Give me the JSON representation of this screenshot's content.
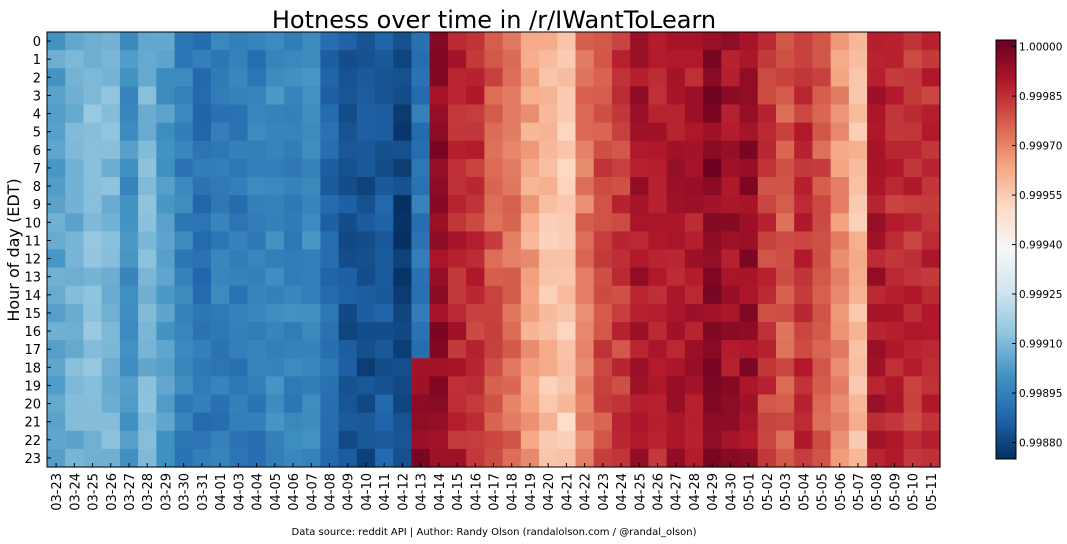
{
  "chart_data": {
    "type": "heatmap",
    "title": "Hotness over time in /r/IWantToLearn",
    "xlabel": "",
    "ylabel": "Hour of day (EDT)",
    "source": "Data source: reddit API | Author: Randy Olson (randalolson.com / @randal_olson)",
    "x_categories": [
      "03-23",
      "03-24",
      "03-25",
      "03-26",
      "03-27",
      "03-28",
      "03-29",
      "03-30",
      "03-31",
      "04-01",
      "04-03",
      "04-04",
      "04-05",
      "04-06",
      "04-07",
      "04-08",
      "04-09",
      "04-10",
      "04-11",
      "04-12",
      "04-13",
      "04-14",
      "04-15",
      "04-16",
      "04-17",
      "04-18",
      "04-19",
      "04-20",
      "04-21",
      "04-22",
      "04-23",
      "04-24",
      "04-25",
      "04-26",
      "04-27",
      "04-28",
      "04-29",
      "04-30",
      "05-01",
      "05-02",
      "05-03",
      "05-04",
      "05-05",
      "05-06",
      "05-07",
      "05-08",
      "05-09",
      "05-10",
      "05-11"
    ],
    "y_categories": [
      "0",
      "1",
      "2",
      "3",
      "4",
      "5",
      "6",
      "7",
      "8",
      "9",
      "10",
      "11",
      "12",
      "13",
      "14",
      "15",
      "16",
      "17",
      "18",
      "19",
      "20",
      "21",
      "22",
      "23"
    ],
    "colorbar": {
      "range": [
        0.99875,
        1.00002
      ],
      "ticks": [
        "1.00000",
        "0.99985",
        "0.99970",
        "0.99955",
        "0.99940",
        "0.99925",
        "0.99910",
        "0.99895",
        "0.99880"
      ],
      "colormap": "RdBu_r",
      "colors": [
        "#053061",
        "#2166ac",
        "#4393c3",
        "#92c5de",
        "#d1e5f0",
        "#f7f7f7",
        "#fddbc7",
        "#f4a582",
        "#d6604d",
        "#b2182b",
        "#67001f"
      ]
    },
    "column_base": [
      0.99904,
      0.99908,
      0.99911,
      0.9991,
      0.999,
      0.99909,
      0.99902,
      0.99895,
      0.99891,
      0.99894,
      0.99893,
      0.99894,
      0.99898,
      0.99896,
      0.99898,
      0.99889,
      0.99883,
      0.99882,
      0.99885,
      0.9988,
      0.99878,
      0.99995,
      0.99988,
      0.99985,
      0.99978,
      0.99974,
      0.99964,
      0.99958,
      0.99955,
      0.99972,
      0.9998,
      0.99983,
      0.99991,
      0.99988,
      0.9999,
      0.9999,
      0.99996,
      0.99992,
      0.99994,
      0.99983,
      0.99977,
      0.99985,
      0.99978,
      0.99967,
      0.99958,
      0.9999,
      0.99986,
      0.99985,
      0.99986
    ],
    "hour_12_13_column_04_13_value": 0.99893,
    "hour_18_23_column_04_13_value": 0.99995,
    "notes_on_values": "column_base gives the approximate typical value per date column; cells vary slightly by hour"
  }
}
